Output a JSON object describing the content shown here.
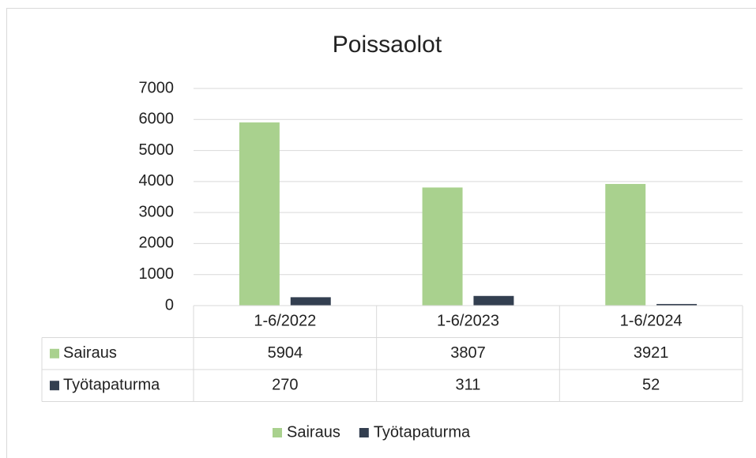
{
  "chart_data": {
    "type": "bar",
    "title": "Poissaolot",
    "categories": [
      "1-6/2022",
      "1-6/2023",
      "1-6/2024"
    ],
    "series": [
      {
        "name": "Sairaus",
        "color": "#a9d18e",
        "values": [
          5904,
          3807,
          3921
        ]
      },
      {
        "name": "Työtapaturma",
        "color": "#333f50",
        "values": [
          270,
          311,
          52
        ]
      }
    ],
    "ylim": [
      0,
      7000
    ],
    "yticks": [
      0,
      1000,
      2000,
      3000,
      4000,
      5000,
      6000,
      7000
    ],
    "grid": true,
    "data_table": true,
    "legend": "bottom"
  }
}
